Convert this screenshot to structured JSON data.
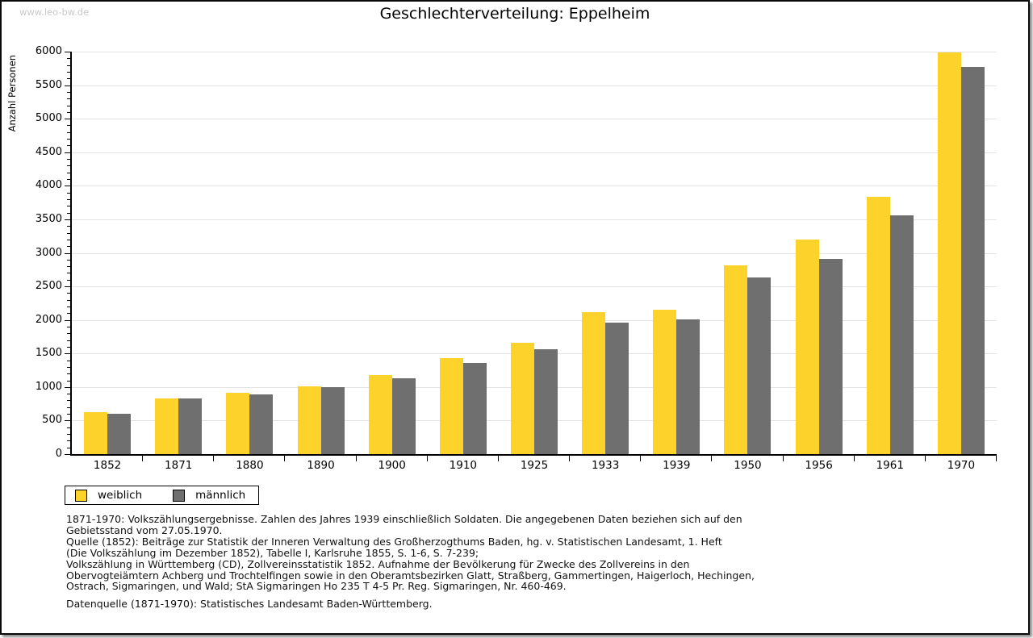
{
  "watermark": "www.leo-bw.de",
  "chart_data": {
    "type": "bar",
    "title": "Geschlechterverteilung: Eppelheim",
    "xlabel": "",
    "ylabel": "Anzahl Personen",
    "categories": [
      "1852",
      "1871",
      "1880",
      "1890",
      "1900",
      "1910",
      "1925",
      "1933",
      "1939",
      "1950",
      "1956",
      "1961",
      "1970"
    ],
    "series": [
      {
        "name": "weiblich",
        "color": "#FDD32B",
        "values": [
          625,
          830,
          915,
          1015,
          1175,
          1430,
          1655,
          2115,
          2150,
          2815,
          3195,
          3830,
          5985
        ]
      },
      {
        "name": "männlich",
        "color": "#6F6F6F",
        "values": [
          600,
          825,
          890,
          995,
          1130,
          1360,
          1565,
          1960,
          2010,
          2630,
          2905,
          3555,
          5770
        ]
      }
    ],
    "ylim": [
      0,
      6000
    ],
    "y_major_step": 500,
    "y_minor_step": 100,
    "grid": "horizontal-major",
    "legend_position": "bottom-left"
  },
  "footnotes": {
    "lines": [
      "1871-1970: Volkszählungsergebnisse. Zahlen des Jahres 1939 einschließlich Soldaten. Die angegebenen Daten beziehen sich auf den",
      "Gebietsstand vom 27.05.1970.",
      "Quelle (1852): Beiträge zur Statistik der Inneren Verwaltung des Großherzogthums Baden, hg. v. Statistischen Landesamt, 1. Heft",
      "(Die Volkszählung im Dezember 1852), Tabelle I, Karlsruhe 1855, S. 1-6, S. 7-239;",
      "Volkszählung in Württemberg (CD), Zollvereinsstatistik 1852. Aufnahme der Bevölkerung für Zwecke des Zollvereins in den",
      "Obervogteiämtern Achberg und Trochtelfingen sowie in den Oberamtsbezirken Glatt, Straßberg, Gammertingen, Haigerloch, Hechingen,",
      "Ostrach, Sigmaringen, und Wald; StA Sigmaringen Ho 235 T 4-5 Pr. Reg. Sigmaringen, Nr. 460-469."
    ],
    "datasource": "Datenquelle (1871-1970): Statistisches Landesamt Baden-Württemberg."
  },
  "colors": {
    "weiblich": "#FDD32B",
    "maennlich": "#6F6F6F",
    "gridline": "#e3e3e3",
    "watermark": "#c9c9c9",
    "frame": "#0a0a0a"
  }
}
